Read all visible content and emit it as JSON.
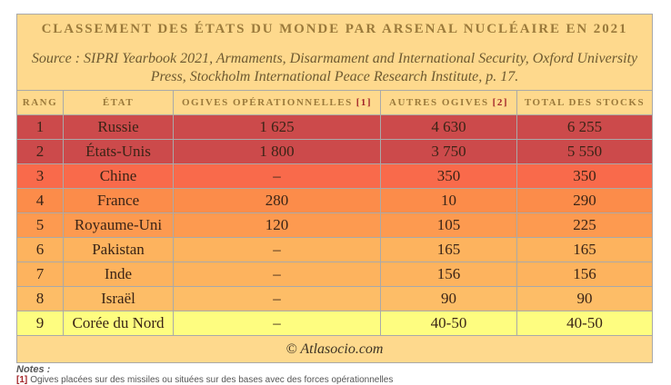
{
  "chart_data": {
    "type": "table",
    "title": "CLASSEMENT DES ÉTATS DU MONDE PAR ARSENAL NUCLÉAIRE EN 2021",
    "source": "Source : SIPRI Yearbook 2021, Armaments, Disarmament and International Security, Oxford University Press, Stockholm International Peace Research Institute, p. 17.",
    "columns": [
      {
        "label": "RANG"
      },
      {
        "label": "ÉTAT"
      },
      {
        "label": "OGIVES OPÉRATIONNELLES",
        "note_ref": "[1]"
      },
      {
        "label": "AUTRES OGIVES",
        "note_ref": "[2]"
      },
      {
        "label": "TOTAL DES STOCKS"
      }
    ],
    "rows": [
      {
        "rank": "1",
        "state": "Russie",
        "deployed": "1 625",
        "other": "4 630",
        "total": "6 255",
        "color": "#cc4a4b"
      },
      {
        "rank": "2",
        "state": "États-Unis",
        "deployed": "1 800",
        "other": "3 750",
        "total": "5 550",
        "color": "#cc4a4b"
      },
      {
        "rank": "3",
        "state": "Chine",
        "deployed": "–",
        "other": "350",
        "total": "350",
        "color": "#f96a4b"
      },
      {
        "rank": "4",
        "state": "France",
        "deployed": "280",
        "other": "10",
        "total": "290",
        "color": "#fc8c4a"
      },
      {
        "rank": "5",
        "state": "Royaume-Uni",
        "deployed": "120",
        "other": "105",
        "total": "225",
        "color": "#fd9a50"
      },
      {
        "rank": "6",
        "state": "Pakistan",
        "deployed": "–",
        "other": "165",
        "total": "165",
        "color": "#fdb35e"
      },
      {
        "rank": "7",
        "state": "Inde",
        "deployed": "–",
        "other": "156",
        "total": "156",
        "color": "#fdb35e"
      },
      {
        "rank": "8",
        "state": "Israël",
        "deployed": "–",
        "other": "90",
        "total": "90",
        "color": "#fdbd67"
      },
      {
        "rank": "9",
        "state": "Corée du Nord",
        "deployed": "–",
        "other": "40-50",
        "total": "40-50",
        "color": "#fefd80"
      }
    ],
    "credit": "© Atlasocio.com"
  },
  "notes": {
    "heading": "Notes :",
    "items": [
      {
        "ref": "[1]",
        "text": "Ogives placées sur des missiles ou situées sur des bases avec des forces opérationnelles"
      }
    ]
  }
}
